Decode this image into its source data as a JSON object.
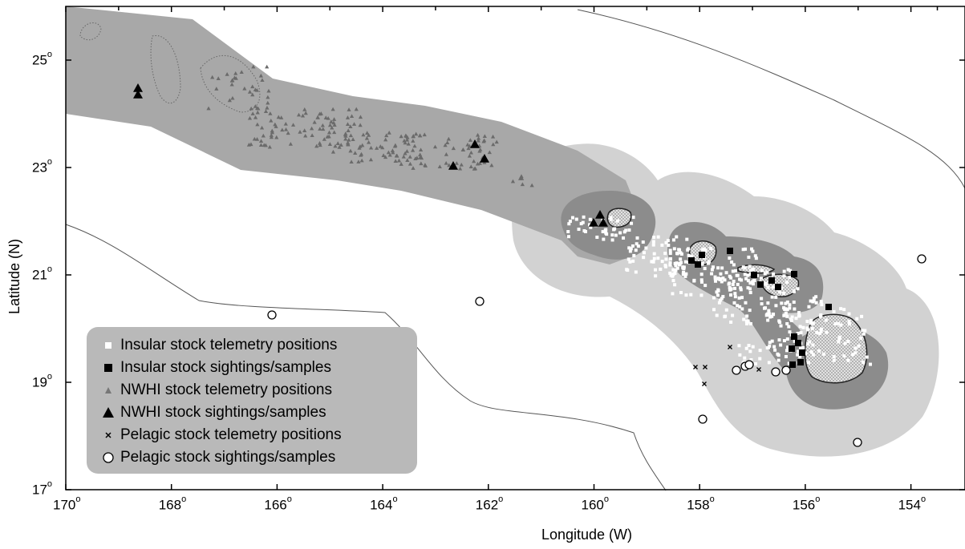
{
  "map": {
    "xlabel": "Longitude (W)",
    "ylabel": "Latitude (N)",
    "x_ticks": [
      "170",
      "168",
      "166",
      "164",
      "162",
      "160",
      "158",
      "156",
      "154"
    ],
    "y_ticks": [
      "25",
      "23",
      "21",
      "19",
      "17"
    ],
    "degree_symbol": "o",
    "colors": {
      "nwhi_band": "#a8a8a8",
      "outer_buffer": "#d2d2d2",
      "inner_buffer": "#8c8c8c",
      "island": "#e6e6e6"
    }
  },
  "legend": {
    "items": [
      {
        "label": "Insular stock telemetry positions",
        "symbol": "white-square"
      },
      {
        "label": "Insular stock sightings/samples",
        "symbol": "black-square"
      },
      {
        "label": "NWHI stock telemetry positions",
        "symbol": "grey-triangle"
      },
      {
        "label": "NWHI stock sightings/samples",
        "symbol": "black-triangle"
      },
      {
        "label": "Pelagic stock telemetry positions",
        "symbol": "x-mark"
      },
      {
        "label": "Pelagic stock sightings/samples",
        "symbol": "open-circle"
      }
    ]
  }
}
